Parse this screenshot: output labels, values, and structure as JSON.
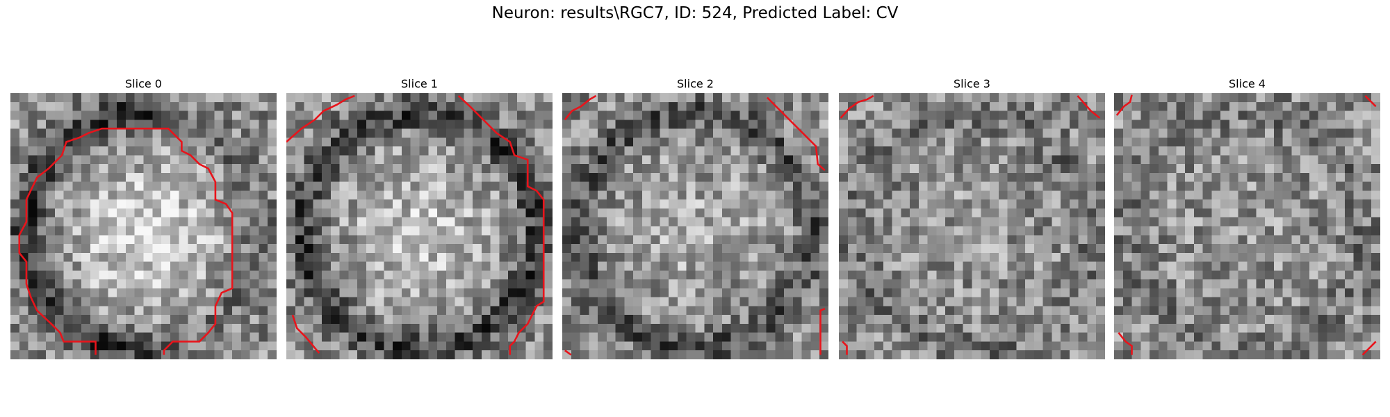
{
  "title": "Neuron: results\\RGC7, ID: 524, Predicted Label: CV",
  "panels": [
    {
      "title": "Slice 0"
    },
    {
      "title": "Slice 1"
    },
    {
      "title": "Slice 2"
    },
    {
      "title": "Slice 3"
    },
    {
      "title": "Slice 4"
    }
  ]
}
